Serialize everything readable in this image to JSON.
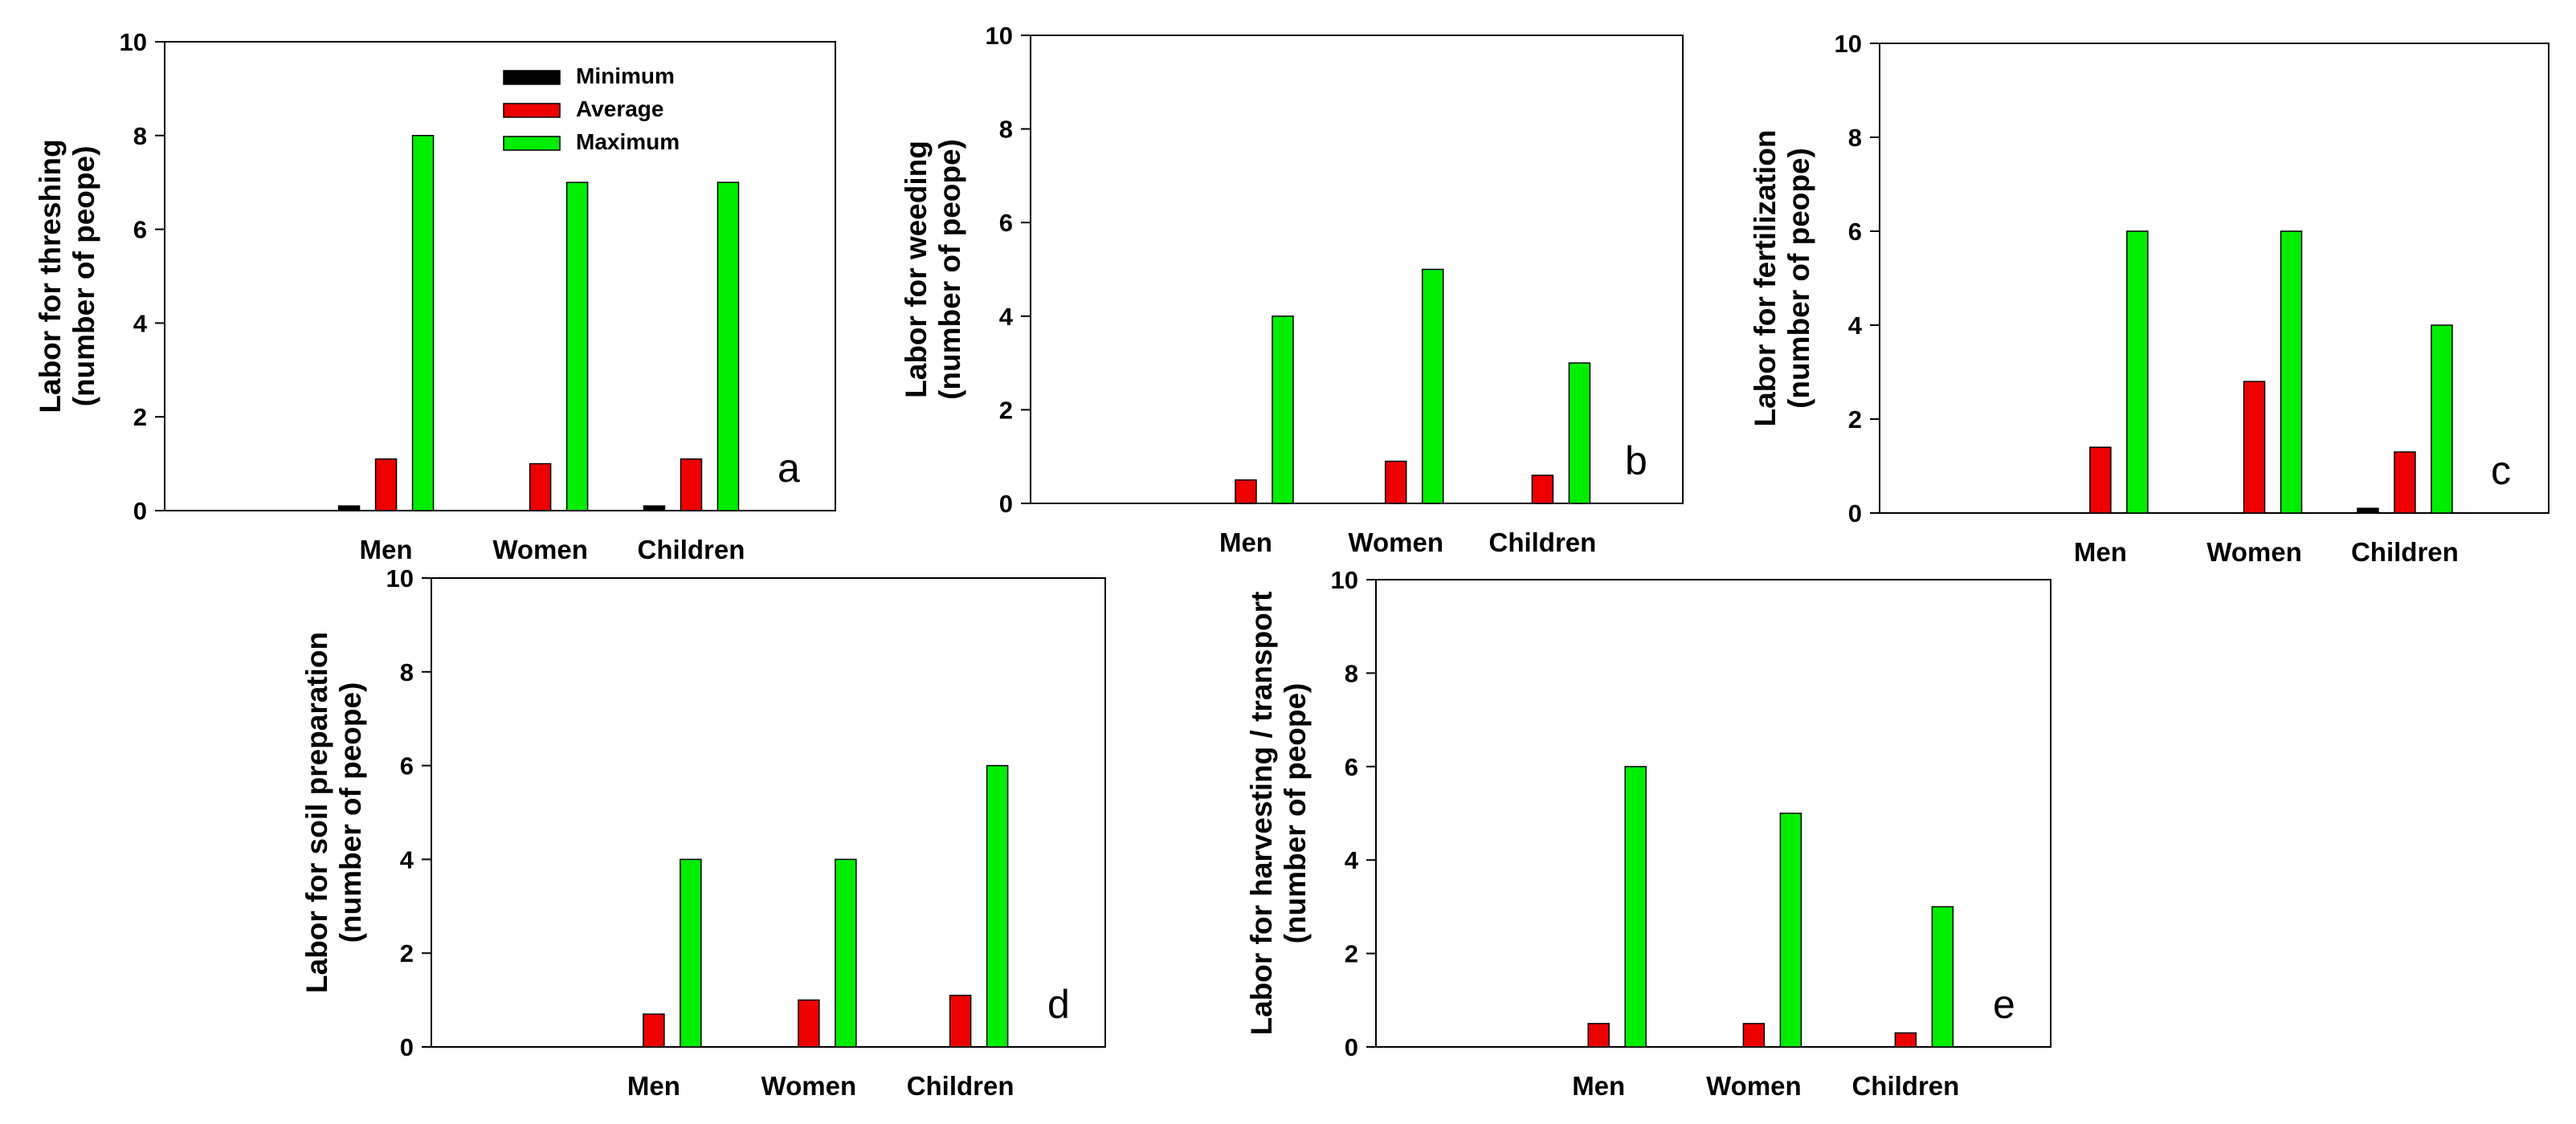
{
  "series_names": [
    "Minimum",
    "Average",
    "Maximum"
  ],
  "series_colors": [
    "#000000",
    "#ee0000",
    "#00ee00"
  ],
  "chart_data": [
    {
      "type": "bar",
      "panel": "a",
      "categories": [
        "Men",
        "Women",
        "Children"
      ],
      "ylabel_lines": [
        "Labor for threshing",
        "(number of peope)"
      ],
      "ylim": [
        0,
        10
      ],
      "yticks": [
        0,
        2,
        4,
        6,
        8,
        10
      ],
      "legend": "top-center",
      "series": [
        {
          "name": "Minimum",
          "values": [
            0.1,
            0,
            0.1
          ]
        },
        {
          "name": "Average",
          "values": [
            1.1,
            1.0,
            1.1
          ]
        },
        {
          "name": "Maximum",
          "values": [
            8,
            7,
            7
          ]
        }
      ]
    },
    {
      "type": "bar",
      "panel": "b",
      "categories": [
        "Men",
        "Women",
        "Children"
      ],
      "ylabel_lines": [
        "Labor for weeding",
        "(number of peope)"
      ],
      "ylim": [
        0,
        10
      ],
      "yticks": [
        0,
        2,
        4,
        6,
        8,
        10
      ],
      "series": [
        {
          "name": "Minimum",
          "values": [
            0,
            0,
            0
          ]
        },
        {
          "name": "Average",
          "values": [
            0.5,
            0.9,
            0.6
          ]
        },
        {
          "name": "Maximum",
          "values": [
            4,
            5,
            3
          ]
        }
      ]
    },
    {
      "type": "bar",
      "panel": "c",
      "categories": [
        "Men",
        "Women",
        "Children"
      ],
      "ylabel_lines": [
        "Labor for fertilization",
        "(number of peope)"
      ],
      "ylim": [
        0,
        10
      ],
      "yticks": [
        0,
        2,
        4,
        6,
        8,
        10
      ],
      "series": [
        {
          "name": "Minimum",
          "values": [
            0,
            0,
            0.1
          ]
        },
        {
          "name": "Average",
          "values": [
            1.4,
            2.8,
            1.3
          ]
        },
        {
          "name": "Maximum",
          "values": [
            6,
            6,
            4
          ]
        }
      ]
    },
    {
      "type": "bar",
      "panel": "d",
      "categories": [
        "Men",
        "Women",
        "Children"
      ],
      "ylabel_lines": [
        "Labor for soil preparation",
        "(number of peope)"
      ],
      "ylim": [
        0,
        10
      ],
      "yticks": [
        0,
        2,
        4,
        6,
        8,
        10
      ],
      "series": [
        {
          "name": "Minimum",
          "values": [
            0,
            0,
            0
          ]
        },
        {
          "name": "Average",
          "values": [
            0.7,
            1.0,
            1.1
          ]
        },
        {
          "name": "Maximum",
          "values": [
            4,
            4,
            6
          ]
        }
      ]
    },
    {
      "type": "bar",
      "panel": "e",
      "categories": [
        "Men",
        "Women",
        "Children"
      ],
      "ylabel_lines": [
        "Labor for harvesting / transport",
        "(number of peope)"
      ],
      "ylim": [
        0,
        10
      ],
      "yticks": [
        0,
        2,
        4,
        6,
        8,
        10
      ],
      "series": [
        {
          "name": "Minimum",
          "values": [
            0,
            0,
            0
          ]
        },
        {
          "name": "Average",
          "values": [
            0.5,
            0.5,
            0.3
          ]
        },
        {
          "name": "Maximum",
          "values": [
            6,
            5,
            3
          ]
        }
      ]
    }
  ]
}
